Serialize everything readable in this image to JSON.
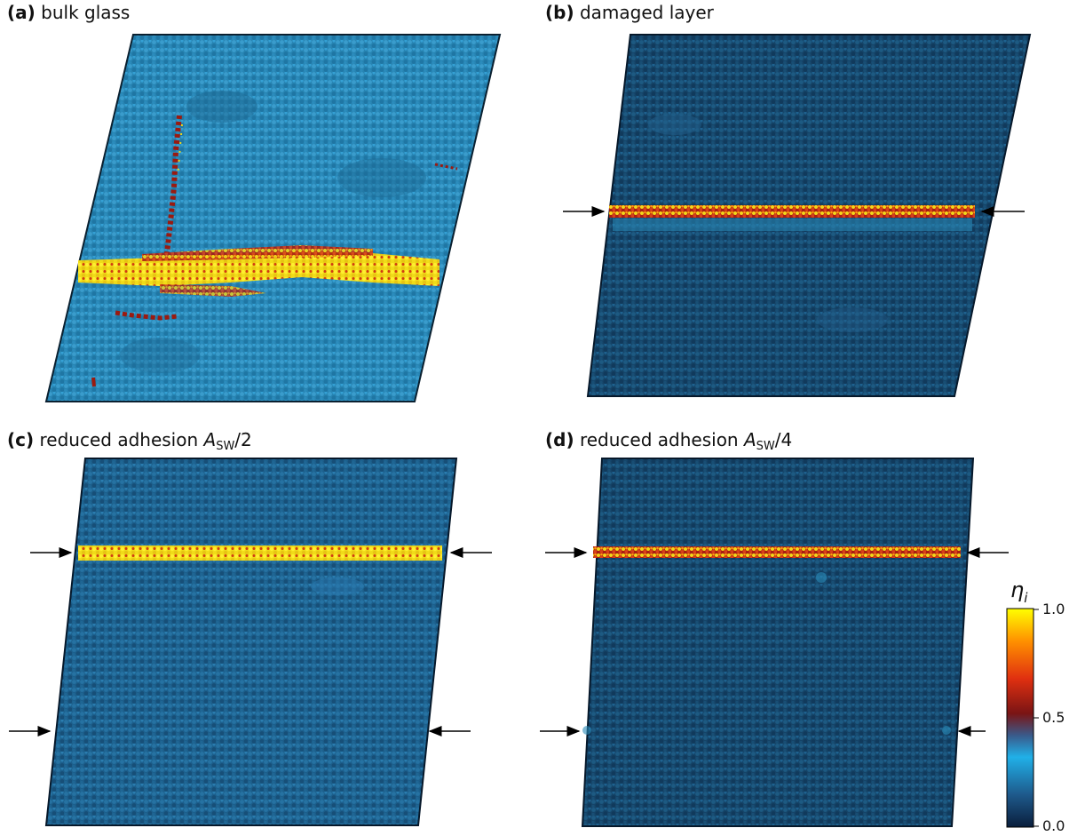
{
  "panels": [
    {
      "id": "a",
      "letter": "(a)",
      "title": "bulk glass"
    },
    {
      "id": "b",
      "letter": "(b)",
      "title": "damaged layer"
    },
    {
      "id": "c",
      "letter": "(c)",
      "title": "reduced adhesion ",
      "symbol": "A",
      "subscript": "SW",
      "suffix": "/2"
    },
    {
      "id": "d",
      "letter": "(d)",
      "title": "reduced adhesion ",
      "symbol": "A",
      "subscript": "SW",
      "suffix": "/4"
    }
  ],
  "colorbar": {
    "symbol": "η",
    "subscript": "i",
    "ticks": [
      "1.0",
      "0.5",
      "0.0"
    ],
    "stops": [
      "#0a1e3c",
      "#1e5a8c",
      "#20b0e8",
      "#3a5a8a",
      "#7a1414",
      "#e03010",
      "#ff9000",
      "#ffff00"
    ]
  },
  "colors": {
    "bulk_bg": "#2a8ab8",
    "dark_bg": "#164a6e",
    "hot_yellow": "#f2e21a",
    "hot_red": "#b02010",
    "arrow": "#000000"
  }
}
